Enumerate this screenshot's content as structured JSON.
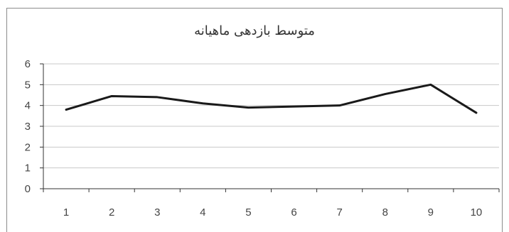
{
  "chart_data": {
    "type": "line",
    "title": "متوسط بازدهی ماهیانه",
    "xlabel": "",
    "ylabel": "",
    "x": [
      "1",
      "2",
      "3",
      "4",
      "5",
      "6",
      "7",
      "8",
      "9",
      "10"
    ],
    "series": [
      {
        "values": [
          3.8,
          4.45,
          4.4,
          4.1,
          3.9,
          3.95,
          4.0,
          4.55,
          5.0,
          3.65
        ]
      }
    ],
    "ylim": [
      0,
      6
    ],
    "yticks": [
      "0",
      "1",
      "2",
      "3",
      "4",
      "5",
      "6"
    ],
    "grid": true,
    "legend": "none",
    "colors": {
      "line": "#1a1a1a",
      "grid": "#c8c8c8",
      "axis": "#333333"
    }
  }
}
